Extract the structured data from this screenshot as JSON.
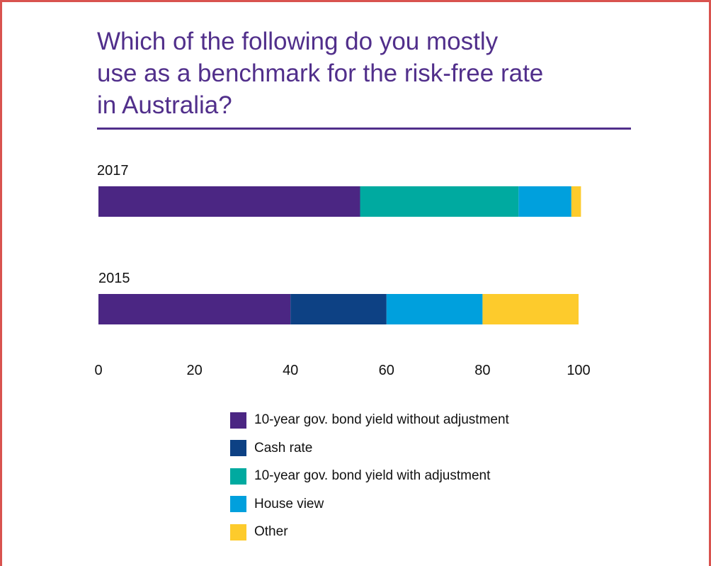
{
  "chart_data": {
    "type": "bar",
    "orientation": "horizontal",
    "stacked": true,
    "title": "Which of the following do you mostly\nuse as a benchmark for the risk-free rate\nin Australia?",
    "categories": [
      "2017",
      "2015"
    ],
    "xlim": [
      0,
      100
    ],
    "xticks": [
      0,
      20,
      40,
      60,
      80,
      100
    ],
    "grid": false,
    "legend_placement": "bottom",
    "series": [
      {
        "name": "10-year gov. bond yield without adjustment",
        "color": "#4b2683",
        "values": [
          54.5,
          40
        ]
      },
      {
        "name": "Cash rate",
        "color": "#0d4184",
        "values": [
          0,
          20
        ]
      },
      {
        "name": "10-year gov. bond yield with adjustment",
        "color": "#00aaa0",
        "values": [
          33,
          0
        ]
      },
      {
        "name": "House view",
        "color": "#00a0dd",
        "values": [
          11,
          20
        ]
      },
      {
        "name": "Other",
        "color": "#fdcb2c",
        "values": [
          2,
          20
        ]
      }
    ]
  }
}
